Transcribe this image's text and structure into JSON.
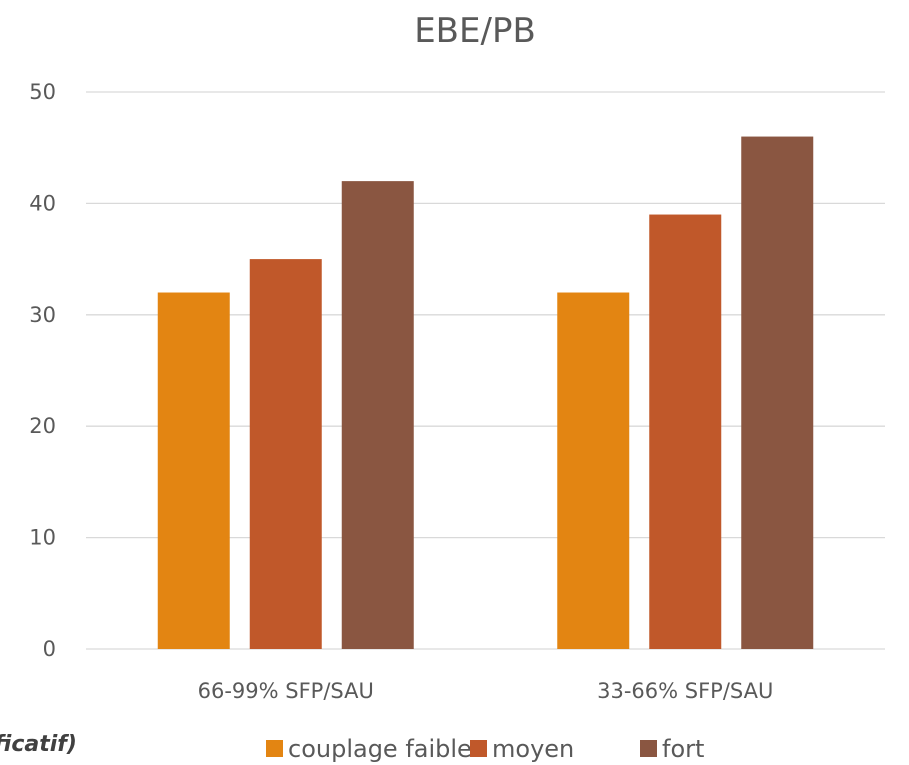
{
  "chart_data": {
    "type": "bar",
    "title": "EBE/PB",
    "categories": [
      "66-99% SFP/SAU",
      "33-66% SFP/SAU"
    ],
    "series": [
      {
        "name": "couplage faible",
        "values": [
          32,
          32
        ],
        "color": "#E38512"
      },
      {
        "name": "moyen",
        "values": [
          35,
          39
        ],
        "color": "#C0582A"
      },
      {
        "name": "fort",
        "values": [
          42,
          46
        ],
        "color": "#8A5641"
      }
    ],
    "ylim": [
      0,
      50
    ],
    "yticks": [
      0,
      10,
      20,
      30,
      40,
      50
    ],
    "grid": true,
    "legend_position": "bottom"
  },
  "footnote": "ficatif)"
}
